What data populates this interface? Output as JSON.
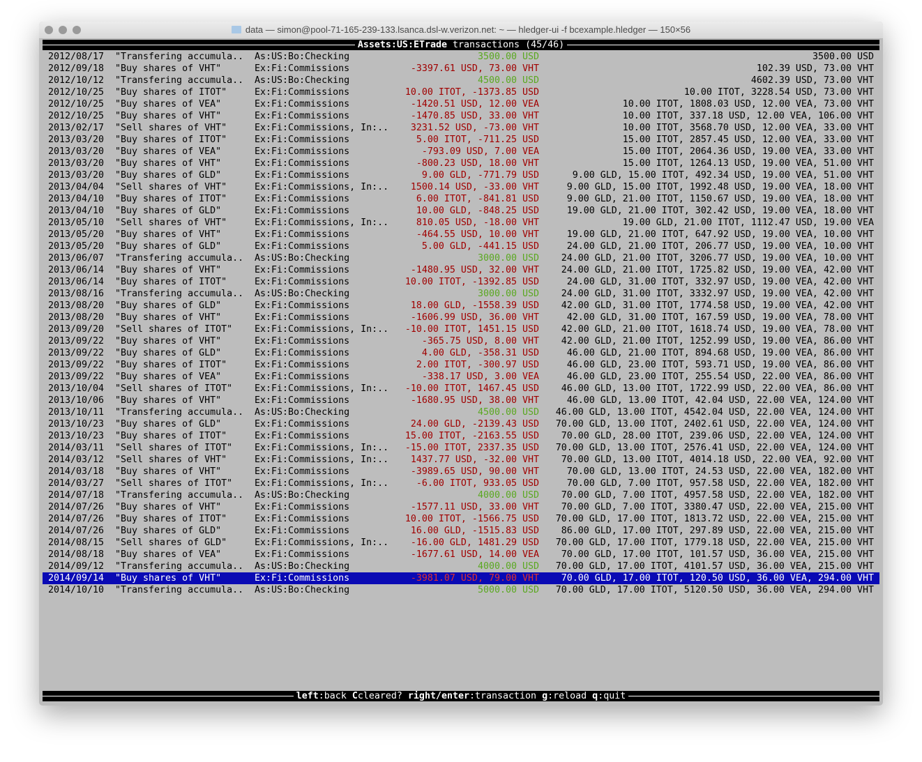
{
  "window": {
    "title": "data — simon@pool-71-165-239-133.lsanca.dsl-w.verizon.net: ~ — hledger-ui -f bcexample.hledger — 150×56"
  },
  "header": {
    "account": "Assets:US:ETrade",
    "label": "transactions (45/46)"
  },
  "footer": [
    {
      "key": "left",
      "action": "back"
    },
    {
      "key": "C",
      "action": "cleared?"
    },
    {
      "key": "right/enter",
      "action": "transaction"
    },
    {
      "key": "g",
      "action": "reload"
    },
    {
      "key": "q",
      "action": "quit"
    }
  ],
  "selected_index": 44,
  "rows": [
    {
      "date": "2012/08/17",
      "desc": "\"Transfering accumula..",
      "acct": "As:US:Bo:Checking",
      "amt": "3500.00 USD",
      "pos": true,
      "bal": "3500.00 USD"
    },
    {
      "date": "2012/09/18",
      "desc": "\"Buy shares of VHT\"",
      "acct": "Ex:Fi:Commissions",
      "amt": "-3397.61 USD, 73.00 VHT",
      "pos": false,
      "bal": "102.39 USD, 73.00 VHT"
    },
    {
      "date": "2012/10/12",
      "desc": "\"Transfering accumula..",
      "acct": "As:US:Bo:Checking",
      "amt": "4500.00 USD",
      "pos": true,
      "bal": "4602.39 USD, 73.00 VHT"
    },
    {
      "date": "2012/10/25",
      "desc": "\"Buy shares of ITOT\"",
      "acct": "Ex:Fi:Commissions",
      "amt": "10.00 ITOT, -1373.85 USD",
      "pos": false,
      "bal": "10.00 ITOT, 3228.54 USD, 73.00 VHT"
    },
    {
      "date": "2012/10/25",
      "desc": "\"Buy shares of VEA\"",
      "acct": "Ex:Fi:Commissions",
      "amt": "-1420.51 USD, 12.00 VEA",
      "pos": false,
      "bal": "10.00 ITOT, 1808.03 USD, 12.00 VEA, 73.00 VHT"
    },
    {
      "date": "2012/10/25",
      "desc": "\"Buy shares of VHT\"",
      "acct": "Ex:Fi:Commissions",
      "amt": "-1470.85 USD, 33.00 VHT",
      "pos": false,
      "bal": "10.00 ITOT, 337.18 USD, 12.00 VEA, 106.00 VHT"
    },
    {
      "date": "2013/02/17",
      "desc": "\"Sell shares of VHT\"",
      "acct": "Ex:Fi:Commissions, In:..",
      "amt": "3231.52 USD, -73.00 VHT",
      "pos": false,
      "bal": "10.00 ITOT, 3568.70 USD, 12.00 VEA, 33.00 VHT"
    },
    {
      "date": "2013/03/20",
      "desc": "\"Buy shares of ITOT\"",
      "acct": "Ex:Fi:Commissions",
      "amt": "5.00 ITOT, -711.25 USD",
      "pos": false,
      "bal": "15.00 ITOT, 2857.45 USD, 12.00 VEA, 33.00 VHT"
    },
    {
      "date": "2013/03/20",
      "desc": "\"Buy shares of VEA\"",
      "acct": "Ex:Fi:Commissions",
      "amt": "-793.09 USD, 7.00 VEA",
      "pos": false,
      "bal": "15.00 ITOT, 2064.36 USD, 19.00 VEA, 33.00 VHT"
    },
    {
      "date": "2013/03/20",
      "desc": "\"Buy shares of VHT\"",
      "acct": "Ex:Fi:Commissions",
      "amt": "-800.23 USD, 18.00 VHT",
      "pos": false,
      "bal": "15.00 ITOT, 1264.13 USD, 19.00 VEA, 51.00 VHT"
    },
    {
      "date": "2013/03/20",
      "desc": "\"Buy shares of GLD\"",
      "acct": "Ex:Fi:Commissions",
      "amt": "9.00 GLD, -771.79 USD",
      "pos": false,
      "bal": "9.00 GLD, 15.00 ITOT, 492.34 USD, 19.00 VEA, 51.00 VHT"
    },
    {
      "date": "2013/04/04",
      "desc": "\"Sell shares of VHT\"",
      "acct": "Ex:Fi:Commissions, In:..",
      "amt": "1500.14 USD, -33.00 VHT",
      "pos": false,
      "bal": "9.00 GLD, 15.00 ITOT, 1992.48 USD, 19.00 VEA, 18.00 VHT"
    },
    {
      "date": "2013/04/10",
      "desc": "\"Buy shares of ITOT\"",
      "acct": "Ex:Fi:Commissions",
      "amt": "6.00 ITOT, -841.81 USD",
      "pos": false,
      "bal": "9.00 GLD, 21.00 ITOT, 1150.67 USD, 19.00 VEA, 18.00 VHT"
    },
    {
      "date": "2013/04/10",
      "desc": "\"Buy shares of GLD\"",
      "acct": "Ex:Fi:Commissions",
      "amt": "10.00 GLD, -848.25 USD",
      "pos": false,
      "bal": "19.00 GLD, 21.00 ITOT, 302.42 USD, 19.00 VEA, 18.00 VHT"
    },
    {
      "date": "2013/05/10",
      "desc": "\"Sell shares of VHT\"",
      "acct": "Ex:Fi:Commissions, In:..",
      "amt": "810.05 USD, -18.00 VHT",
      "pos": false,
      "bal": "19.00 GLD, 21.00 ITOT, 1112.47 USD, 19.00 VEA"
    },
    {
      "date": "2013/05/20",
      "desc": "\"Buy shares of VHT\"",
      "acct": "Ex:Fi:Commissions",
      "amt": "-464.55 USD, 10.00 VHT",
      "pos": false,
      "bal": "19.00 GLD, 21.00 ITOT, 647.92 USD, 19.00 VEA, 10.00 VHT"
    },
    {
      "date": "2013/05/20",
      "desc": "\"Buy shares of GLD\"",
      "acct": "Ex:Fi:Commissions",
      "amt": "5.00 GLD, -441.15 USD",
      "pos": false,
      "bal": "24.00 GLD, 21.00 ITOT, 206.77 USD, 19.00 VEA, 10.00 VHT"
    },
    {
      "date": "2013/06/07",
      "desc": "\"Transfering accumula..",
      "acct": "As:US:Bo:Checking",
      "amt": "3000.00 USD",
      "pos": true,
      "bal": "24.00 GLD, 21.00 ITOT, 3206.77 USD, 19.00 VEA, 10.00 VHT"
    },
    {
      "date": "2013/06/14",
      "desc": "\"Buy shares of VHT\"",
      "acct": "Ex:Fi:Commissions",
      "amt": "-1480.95 USD, 32.00 VHT",
      "pos": false,
      "bal": "24.00 GLD, 21.00 ITOT, 1725.82 USD, 19.00 VEA, 42.00 VHT"
    },
    {
      "date": "2013/06/14",
      "desc": "\"Buy shares of ITOT\"",
      "acct": "Ex:Fi:Commissions",
      "amt": "10.00 ITOT, -1392.85 USD",
      "pos": false,
      "bal": "24.00 GLD, 31.00 ITOT, 332.97 USD, 19.00 VEA, 42.00 VHT"
    },
    {
      "date": "2013/08/16",
      "desc": "\"Transfering accumula..",
      "acct": "As:US:Bo:Checking",
      "amt": "3000.00 USD",
      "pos": true,
      "bal": "24.00 GLD, 31.00 ITOT, 3332.97 USD, 19.00 VEA, 42.00 VHT"
    },
    {
      "date": "2013/08/20",
      "desc": "\"Buy shares of GLD\"",
      "acct": "Ex:Fi:Commissions",
      "amt": "18.00 GLD, -1558.39 USD",
      "pos": false,
      "bal": "42.00 GLD, 31.00 ITOT, 1774.58 USD, 19.00 VEA, 42.00 VHT"
    },
    {
      "date": "2013/08/20",
      "desc": "\"Buy shares of VHT\"",
      "acct": "Ex:Fi:Commissions",
      "amt": "-1606.99 USD, 36.00 VHT",
      "pos": false,
      "bal": "42.00 GLD, 31.00 ITOT, 167.59 USD, 19.00 VEA, 78.00 VHT"
    },
    {
      "date": "2013/09/20",
      "desc": "\"Sell shares of ITOT\"",
      "acct": "Ex:Fi:Commissions, In:..",
      "amt": "-10.00 ITOT, 1451.15 USD",
      "pos": false,
      "bal": "42.00 GLD, 21.00 ITOT, 1618.74 USD, 19.00 VEA, 78.00 VHT"
    },
    {
      "date": "2013/09/22",
      "desc": "\"Buy shares of VHT\"",
      "acct": "Ex:Fi:Commissions",
      "amt": "-365.75 USD, 8.00 VHT",
      "pos": false,
      "bal": "42.00 GLD, 21.00 ITOT, 1252.99 USD, 19.00 VEA, 86.00 VHT"
    },
    {
      "date": "2013/09/22",
      "desc": "\"Buy shares of GLD\"",
      "acct": "Ex:Fi:Commissions",
      "amt": "4.00 GLD, -358.31 USD",
      "pos": false,
      "bal": "46.00 GLD, 21.00 ITOT, 894.68 USD, 19.00 VEA, 86.00 VHT"
    },
    {
      "date": "2013/09/22",
      "desc": "\"Buy shares of ITOT\"",
      "acct": "Ex:Fi:Commissions",
      "amt": "2.00 ITOT, -300.97 USD",
      "pos": false,
      "bal": "46.00 GLD, 23.00 ITOT, 593.71 USD, 19.00 VEA, 86.00 VHT"
    },
    {
      "date": "2013/09/22",
      "desc": "\"Buy shares of VEA\"",
      "acct": "Ex:Fi:Commissions",
      "amt": "-338.17 USD, 3.00 VEA",
      "pos": false,
      "bal": "46.00 GLD, 23.00 ITOT, 255.54 USD, 22.00 VEA, 86.00 VHT"
    },
    {
      "date": "2013/10/04",
      "desc": "\"Sell shares of ITOT\"",
      "acct": "Ex:Fi:Commissions, In:..",
      "amt": "-10.00 ITOT, 1467.45 USD",
      "pos": false,
      "bal": "46.00 GLD, 13.00 ITOT, 1722.99 USD, 22.00 VEA, 86.00 VHT"
    },
    {
      "date": "2013/10/06",
      "desc": "\"Buy shares of VHT\"",
      "acct": "Ex:Fi:Commissions",
      "amt": "-1680.95 USD, 38.00 VHT",
      "pos": false,
      "bal": "46.00 GLD, 13.00 ITOT, 42.04 USD, 22.00 VEA, 124.00 VHT"
    },
    {
      "date": "2013/10/11",
      "desc": "\"Transfering accumula..",
      "acct": "As:US:Bo:Checking",
      "amt": "4500.00 USD",
      "pos": true,
      "bal": "46.00 GLD, 13.00 ITOT, 4542.04 USD, 22.00 VEA, 124.00 VHT"
    },
    {
      "date": "2013/10/23",
      "desc": "\"Buy shares of GLD\"",
      "acct": "Ex:Fi:Commissions",
      "amt": "24.00 GLD, -2139.43 USD",
      "pos": false,
      "bal": "70.00 GLD, 13.00 ITOT, 2402.61 USD, 22.00 VEA, 124.00 VHT"
    },
    {
      "date": "2013/10/23",
      "desc": "\"Buy shares of ITOT\"",
      "acct": "Ex:Fi:Commissions",
      "amt": "15.00 ITOT, -2163.55 USD",
      "pos": false,
      "bal": "70.00 GLD, 28.00 ITOT, 239.06 USD, 22.00 VEA, 124.00 VHT"
    },
    {
      "date": "2014/03/11",
      "desc": "\"Sell shares of ITOT\"",
      "acct": "Ex:Fi:Commissions, In:..",
      "amt": "-15.00 ITOT, 2337.35 USD",
      "pos": false,
      "bal": "70.00 GLD, 13.00 ITOT, 2576.41 USD, 22.00 VEA, 124.00 VHT"
    },
    {
      "date": "2014/03/12",
      "desc": "\"Sell shares of VHT\"",
      "acct": "Ex:Fi:Commissions, In:..",
      "amt": "1437.77 USD, -32.00 VHT",
      "pos": false,
      "bal": "70.00 GLD, 13.00 ITOT, 4014.18 USD, 22.00 VEA, 92.00 VHT"
    },
    {
      "date": "2014/03/18",
      "desc": "\"Buy shares of VHT\"",
      "acct": "Ex:Fi:Commissions",
      "amt": "-3989.65 USD, 90.00 VHT",
      "pos": false,
      "bal": "70.00 GLD, 13.00 ITOT, 24.53 USD, 22.00 VEA, 182.00 VHT"
    },
    {
      "date": "2014/03/27",
      "desc": "\"Sell shares of ITOT\"",
      "acct": "Ex:Fi:Commissions, In:..",
      "amt": "-6.00 ITOT, 933.05 USD",
      "pos": false,
      "bal": "70.00 GLD, 7.00 ITOT, 957.58 USD, 22.00 VEA, 182.00 VHT"
    },
    {
      "date": "2014/07/18",
      "desc": "\"Transfering accumula..",
      "acct": "As:US:Bo:Checking",
      "amt": "4000.00 USD",
      "pos": true,
      "bal": "70.00 GLD, 7.00 ITOT, 4957.58 USD, 22.00 VEA, 182.00 VHT"
    },
    {
      "date": "2014/07/26",
      "desc": "\"Buy shares of VHT\"",
      "acct": "Ex:Fi:Commissions",
      "amt": "-1577.11 USD, 33.00 VHT",
      "pos": false,
      "bal": "70.00 GLD, 7.00 ITOT, 3380.47 USD, 22.00 VEA, 215.00 VHT"
    },
    {
      "date": "2014/07/26",
      "desc": "\"Buy shares of ITOT\"",
      "acct": "Ex:Fi:Commissions",
      "amt": "10.00 ITOT, -1566.75 USD",
      "pos": false,
      "bal": "70.00 GLD, 17.00 ITOT, 1813.72 USD, 22.00 VEA, 215.00 VHT"
    },
    {
      "date": "2014/07/26",
      "desc": "\"Buy shares of GLD\"",
      "acct": "Ex:Fi:Commissions",
      "amt": "16.00 GLD, -1515.83 USD",
      "pos": false,
      "bal": "86.00 GLD, 17.00 ITOT, 297.89 USD, 22.00 VEA, 215.00 VHT"
    },
    {
      "date": "2014/08/15",
      "desc": "\"Sell shares of GLD\"",
      "acct": "Ex:Fi:Commissions, In:..",
      "amt": "-16.00 GLD, 1481.29 USD",
      "pos": false,
      "bal": "70.00 GLD, 17.00 ITOT, 1779.18 USD, 22.00 VEA, 215.00 VHT"
    },
    {
      "date": "2014/08/18",
      "desc": "\"Buy shares of VEA\"",
      "acct": "Ex:Fi:Commissions",
      "amt": "-1677.61 USD, 14.00 VEA",
      "pos": false,
      "bal": "70.00 GLD, 17.00 ITOT, 101.57 USD, 36.00 VEA, 215.00 VHT"
    },
    {
      "date": "2014/09/12",
      "desc": "\"Transfering accumula..",
      "acct": "As:US:Bo:Checking",
      "amt": "4000.00 USD",
      "pos": true,
      "bal": "70.00 GLD, 17.00 ITOT, 4101.57 USD, 36.00 VEA, 215.00 VHT"
    },
    {
      "date": "2014/09/14",
      "desc": "\"Buy shares of VHT\"",
      "acct": "Ex:Fi:Commissions",
      "amt": "-3981.07 USD, 79.00 VHT",
      "pos": false,
      "bal": "70.00 GLD, 17.00 ITOT, 120.50 USD, 36.00 VEA, 294.00 VHT"
    },
    {
      "date": "2014/10/10",
      "desc": "\"Transfering accumula..",
      "acct": "As:US:Bo:Checking",
      "amt": "5000.00 USD",
      "pos": true,
      "bal": "70.00 GLD, 17.00 ITOT, 5120.50 USD, 36.00 VEA, 294.00 VHT"
    }
  ]
}
